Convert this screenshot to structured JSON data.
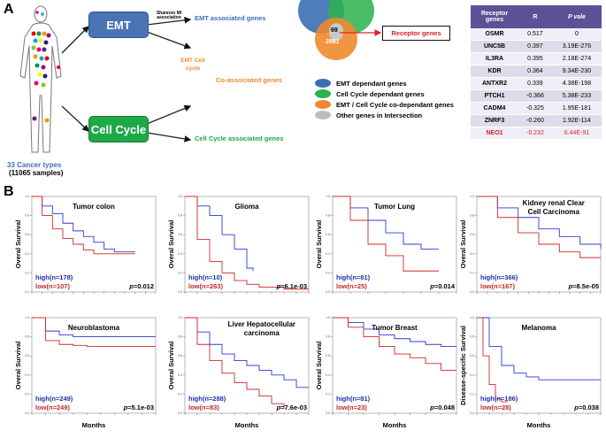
{
  "panelA": {
    "letter": "A",
    "cancer_types": "33 Cancer types",
    "samples": "(11065 samples)",
    "emt_box": "EMT",
    "cc_box": "Cell Cycle",
    "shannon": "Shannon MI association",
    "emt_genes": "EMT associated genes",
    "emt_cellcycle": "EMT Cell cycle",
    "co_genes": "Co-associated genes",
    "cc_genes": "Cell Cycle associated genes",
    "venn_inner1": "69",
    "venn_inner2": "2861",
    "receptor_genes": "Receptor genes",
    "legend": [
      {
        "label": "EMT dependant genes",
        "color": "#3b6fb5"
      },
      {
        "label": "Cell Cycle dependant genes",
        "color": "#2bb24c"
      },
      {
        "label": "EMT / Cell Cycle co-dependant genes",
        "color": "#f08a2f"
      },
      {
        "label": "Other genes in Intersection",
        "color": "#bdbdbd"
      }
    ],
    "colors": {
      "blue": "#4a74b6",
      "green": "#1faa48",
      "orange": "#f0892e"
    },
    "table": {
      "headers": [
        "Receptor genes",
        "R",
        "P vale"
      ],
      "rows": [
        [
          "OSMR",
          "0.517",
          "0"
        ],
        [
          "UNC5B",
          "0.397",
          "3.19E-276"
        ],
        [
          "IL3RA",
          "0.395",
          "2.18E-274"
        ],
        [
          "KDR",
          "0.364",
          "9.34E-230"
        ],
        [
          "ANTXR2",
          "0.339",
          "4.38E-198"
        ],
        [
          "PTCH1",
          "-0.366",
          "5.38E-233"
        ],
        [
          "CADM4",
          "-0.325",
          "1.95E-181"
        ],
        [
          "ZNRF3",
          "-0.260",
          "1.92E-114"
        ],
        [
          "NEO1",
          "-0.232",
          "6.44E-91"
        ]
      ]
    }
  },
  "panelB": {
    "letter": "B",
    "xlabel": "Months",
    "plots": [
      {
        "title": "Tumor colon",
        "ylabel": "Overal Survival",
        "high": "high(n=178)",
        "low": "low(n=107)",
        "p": "=0.012"
      },
      {
        "title": "Glioma",
        "ylabel": "Overal Survival",
        "high": "high(n=10)",
        "low": "low(n=263)",
        "p": "=6.1e-03"
      },
      {
        "title": "Tumor Lung",
        "ylabel": "Overal Survival",
        "high": "high(n=81)",
        "low": "low(n=25)",
        "p": "=0.014"
      },
      {
        "title": "Kidney renal Clear Cell Carcinoma",
        "ylabel": "Overal Survival",
        "high": "high(n=366)",
        "low": "low(n=167)",
        "p": "=8.5e-05"
      },
      {
        "title": "Neuroblastoma",
        "ylabel": "Overal Survival",
        "high": "high(n=249)",
        "low": "low(n=249)",
        "p": "=5.1e-03"
      },
      {
        "title": "Liver Hepatocellular carcinoma",
        "ylabel": "Overal Survival",
        "high": "high(n=288)",
        "low": "low(n=83)",
        "p": "=7.6e-03"
      },
      {
        "title": "Tumor Breast",
        "ylabel": "Overal Survival",
        "high": "high(n=81)",
        "low": "low(n=23)",
        "p": "=0.048"
      },
      {
        "title": "Melanoma",
        "ylabel": "Disease-specific Survival",
        "high": "high(n=186)",
        "low": "low(n=28)",
        "p": "=0.038"
      }
    ]
  },
  "chart_data": [
    {
      "type": "line",
      "title": "Tumor colon",
      "series": [
        {
          "name": "high(n=178)",
          "x": [
            0,
            12,
            24,
            36,
            48,
            60,
            72,
            84,
            96,
            108,
            120
          ],
          "values": [
            1,
            0.9,
            0.82,
            0.72,
            0.64,
            0.58,
            0.52,
            0.45,
            0.42,
            0.42,
            0.42
          ]
        },
        {
          "name": "low(n=107)",
          "x": [
            0,
            12,
            24,
            36,
            48,
            60,
            72,
            84,
            96,
            108,
            120
          ],
          "values": [
            1,
            0.8,
            0.66,
            0.56,
            0.5,
            0.44,
            0.4,
            0.4,
            0.4,
            0.4,
            0.4
          ]
        }
      ]
    },
    {
      "type": "line",
      "title": "Glioma",
      "series": [
        {
          "name": "high(n=10)",
          "x": [
            0,
            24,
            48,
            72,
            96,
            120,
            132
          ],
          "values": [
            1,
            0.9,
            0.8,
            0.6,
            0.45,
            0.25,
            0.22
          ]
        },
        {
          "name": "low(n=263)",
          "x": [
            0,
            24,
            48,
            72,
            96,
            120,
            144,
            192,
            240
          ],
          "values": [
            1,
            0.55,
            0.32,
            0.2,
            0.12,
            0.08,
            0.05,
            0.03,
            0.03
          ]
        }
      ]
    },
    {
      "type": "line",
      "title": "Tumor Lung",
      "series": [
        {
          "name": "high(n=81)",
          "x": [
            0,
            12,
            24,
            36,
            48,
            60,
            72
          ],
          "values": [
            1,
            0.88,
            0.75,
            0.62,
            0.5,
            0.45,
            0.45
          ]
        },
        {
          "name": "low(n=25)",
          "x": [
            0,
            12,
            24,
            36,
            48,
            60,
            72
          ],
          "values": [
            1,
            0.75,
            0.5,
            0.38,
            0.22,
            0.22,
            0.22
          ]
        }
      ]
    },
    {
      "type": "line",
      "title": "Kidney renal Clear Cell Carcinoma",
      "series": [
        {
          "name": "high(n=366)",
          "x": [
            0,
            24,
            48,
            72,
            96,
            120,
            144
          ],
          "values": [
            1,
            0.88,
            0.78,
            0.66,
            0.58,
            0.5,
            0.45
          ]
        },
        {
          "name": "low(n=167)",
          "x": [
            0,
            24,
            48,
            72,
            96,
            120,
            144
          ],
          "values": [
            1,
            0.78,
            0.62,
            0.5,
            0.42,
            0.36,
            0.36
          ]
        }
      ]
    },
    {
      "type": "line",
      "title": "Neuroblastoma",
      "series": [
        {
          "name": "high(n=249)",
          "x": [
            0,
            24,
            48,
            72,
            96,
            120,
            144,
            168,
            192,
            216
          ],
          "values": [
            1,
            0.86,
            0.82,
            0.8,
            0.8,
            0.8,
            0.8,
            0.8,
            0.8,
            0.8
          ]
        },
        {
          "name": "low(n=249)",
          "x": [
            0,
            24,
            48,
            72,
            96,
            120,
            144,
            168,
            192,
            216
          ],
          "values": [
            1,
            0.76,
            0.72,
            0.71,
            0.7,
            0.7,
            0.7,
            0.7,
            0.7,
            0.7
          ]
        }
      ]
    },
    {
      "type": "line",
      "title": "Liver Hepatocellular carcinoma",
      "series": [
        {
          "name": "high(n=288)",
          "x": [
            0,
            12,
            24,
            36,
            48,
            60,
            72,
            84,
            96,
            108,
            120
          ],
          "values": [
            1,
            0.85,
            0.72,
            0.62,
            0.55,
            0.5,
            0.45,
            0.4,
            0.35,
            0.27,
            0.27
          ]
        },
        {
          "name": "low(n=83)",
          "x": [
            0,
            12,
            24,
            36,
            48,
            60,
            72,
            84,
            96
          ],
          "values": [
            1,
            0.72,
            0.55,
            0.42,
            0.32,
            0.25,
            0.18,
            0.1,
            0.05
          ]
        }
      ]
    },
    {
      "type": "line",
      "title": "Tumor Breast",
      "series": [
        {
          "name": "high(n=81)",
          "x": [
            0,
            12,
            24,
            36,
            48,
            60,
            72,
            84,
            96
          ],
          "values": [
            1,
            0.95,
            0.88,
            0.82,
            0.78,
            0.75,
            0.72,
            0.7,
            0.7
          ]
        },
        {
          "name": "low(n=23)",
          "x": [
            0,
            12,
            24,
            36,
            48,
            60,
            72,
            84,
            96
          ],
          "values": [
            1,
            0.9,
            0.8,
            0.7,
            0.62,
            0.58,
            0.52,
            0.45,
            0.45
          ]
        }
      ]
    },
    {
      "type": "line",
      "title": "Melanoma",
      "series": [
        {
          "name": "high(n=186)",
          "x": [
            0,
            24,
            48,
            72,
            96,
            120,
            144,
            192,
            240
          ],
          "values": [
            1,
            0.7,
            0.5,
            0.42,
            0.38,
            0.35,
            0.35,
            0.35,
            0.35
          ]
        },
        {
          "name": "low(n=28)",
          "x": [
            0,
            12,
            24,
            36,
            48,
            60
          ],
          "values": [
            1,
            0.6,
            0.3,
            0.15,
            0.12,
            0.12
          ]
        }
      ]
    }
  ]
}
